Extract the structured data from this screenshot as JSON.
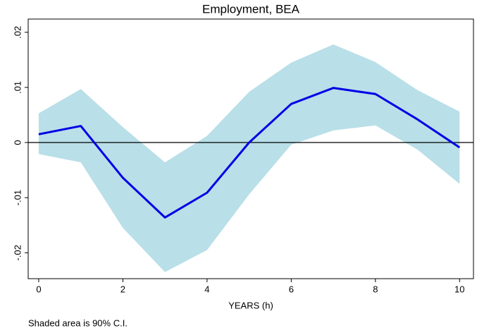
{
  "chart_data": {
    "type": "line",
    "title": "Employment, BEA",
    "x_label": "YEARS (h)",
    "note": "Shaded area is 90% C.I.",
    "x": [
      0,
      1,
      2,
      3,
      4,
      5,
      6,
      7,
      8,
      9,
      10
    ],
    "values": [
      0.0015,
      0.003,
      -0.0064,
      -0.0136,
      -0.0091,
      0,
      0.007,
      0.0099,
      0.0088,
      0.0042,
      -0.0009
    ],
    "color": "#0000e6",
    "ci": {
      "lower": [
        -0.0021,
        -0.0036,
        -0.0155,
        -0.0235,
        -0.0195,
        -0.0094,
        -0.0004,
        0.0022,
        0.0031,
        -0.0013,
        -0.0075
      ],
      "upper": [
        0.0053,
        0.0097,
        0.0028,
        -0.0036,
        0.0012,
        0.0092,
        0.0145,
        0.0178,
        0.0146,
        0.0095,
        0.0056
      ],
      "color": "#b9dfe8"
    },
    "reference_line": 0,
    "xlim": [
      -0.25,
      10.33
    ],
    "xticks": [
      0,
      2,
      4,
      6,
      8,
      10
    ],
    "ylim": [
      -0.0247,
      0.0224
    ],
    "yticks": [
      {
        "value": -0.02,
        "label": "-.02"
      },
      {
        "value": -0.01,
        "label": "-.01"
      },
      0,
      {
        "value": 0.01,
        "label": ".01"
      },
      {
        "value": 0.02,
        "label": ".02"
      }
    ]
  }
}
